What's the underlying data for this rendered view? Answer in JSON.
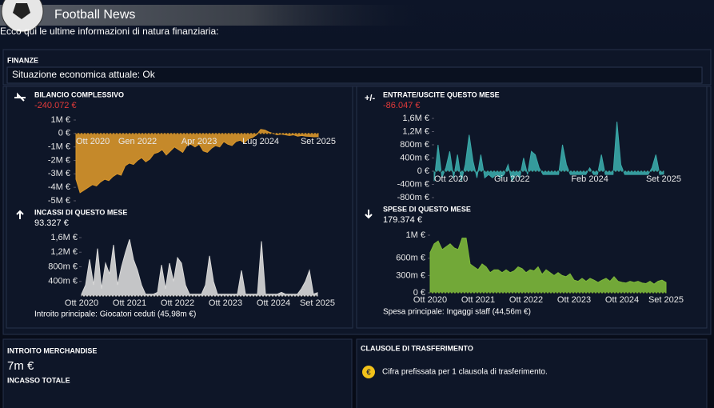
{
  "header": {
    "title": "Football News",
    "subtitle": "Ecco qui le ultime informazioni di natura finanziaria:"
  },
  "finance": {
    "label": "FINANZE",
    "status": "Situazione economica attuale: Ok"
  },
  "chart_data": [
    {
      "type": "area",
      "title": "BILANCIO COMPLESSIVO",
      "value_text": "-240.072 €",
      "color": "#d9962a",
      "categories": [
        "Ott 2020",
        null,
        null,
        null,
        null,
        null,
        null,
        null,
        null,
        null,
        null,
        null,
        null,
        null,
        null,
        "Gen 2022",
        null,
        null,
        null,
        null,
        null,
        null,
        null,
        null,
        null,
        null,
        null,
        null,
        null,
        null,
        "Apr 2023",
        null,
        null,
        null,
        null,
        null,
        null,
        null,
        null,
        null,
        null,
        null,
        null,
        null,
        null,
        "Lug 2024",
        null,
        null,
        null,
        null,
        null,
        null,
        null,
        null,
        null,
        null,
        null,
        null,
        null,
        "Set 2025"
      ],
      "values": [
        -3.4,
        -4.4,
        -4.2,
        -4.0,
        -3.8,
        -3.9,
        -3.6,
        -3.4,
        -3.5,
        -3.2,
        -3.0,
        -3.1,
        -2.4,
        -2.2,
        -2.3,
        -2.0,
        -1.8,
        -2.1,
        -1.9,
        -1.5,
        -1.4,
        -1.2,
        -1.6,
        -1.3,
        -1.0,
        -1.2,
        -1.4,
        -0.9,
        -0.8,
        -1.0,
        -0.8,
        -1.3,
        -1.4,
        -1.1,
        -0.9,
        -1.0,
        -0.6,
        -0.8,
        -0.9,
        -0.6,
        -0.5,
        -0.7,
        -0.4,
        -0.3,
        -0.1,
        0.3,
        0.25,
        0.1,
        0.0,
        -0.1,
        -0.05,
        -0.1,
        -0.15,
        -0.1,
        -0.2,
        -0.15,
        -0.2,
        -0.22,
        -0.25,
        -0.24
      ],
      "ylim": [
        -5,
        1
      ],
      "yticks": [
        {
          "value": 1,
          "label": "1M €"
        },
        {
          "value": 0,
          "label": "0 €"
        },
        {
          "value": -1,
          "label": "-1M €"
        },
        {
          "value": -2,
          "label": "-2M €"
        },
        {
          "value": -3,
          "label": "-3M €"
        },
        {
          "value": -4,
          "label": "-4M €"
        },
        {
          "value": -5,
          "label": "-5M €"
        }
      ]
    },
    {
      "type": "area",
      "title": "ENTRATE/USCITE QUESTO MESE",
      "value_text": "-86.047 €",
      "color": "#3aa8a8",
      "categories": [
        "Ott 2020",
        null,
        null,
        null,
        null,
        null,
        null,
        null,
        null,
        null,
        null,
        null,
        null,
        null,
        null,
        null,
        null,
        null,
        null,
        null,
        "Giu 2022",
        null,
        null,
        null,
        null,
        null,
        null,
        null,
        null,
        null,
        null,
        null,
        null,
        null,
        null,
        null,
        null,
        null,
        null,
        null,
        "Feb 2024",
        null,
        null,
        null,
        null,
        null,
        null,
        null,
        null,
        null,
        null,
        null,
        null,
        null,
        null,
        null,
        null,
        null,
        null,
        "Set 2025"
      ],
      "values": [
        -0.3,
        0.8,
        -0.2,
        0.1,
        0.6,
        -0.2,
        0.5,
        -0.3,
        0.2,
        1.1,
        0.3,
        -0.2,
        0.5,
        -0.2,
        -0.1,
        -0.2,
        -0.1,
        -0.2,
        -0.1,
        0.2,
        -0.3,
        -0.1,
        -0.2,
        0.4,
        -0.1,
        0.6,
        0.5,
        0.1,
        -0.1,
        -0.1,
        -0.1,
        -0.1,
        -0.1,
        0.8,
        0.2,
        -0.1,
        -0.1,
        -0.1,
        -0.1,
        -0.1,
        0.1,
        -0.1,
        -0.1,
        0.5,
        -0.1,
        -0.1,
        -0.1,
        1.5,
        0.2,
        -0.1,
        -0.1,
        -0.1,
        -0.1,
        -0.1,
        -0.1,
        -0.1,
        0.1,
        0.5,
        -0.1,
        -0.09
      ],
      "ylim": [
        -0.8,
        1.6
      ],
      "yticks": [
        {
          "value": 1.6,
          "label": "1,6M €"
        },
        {
          "value": 1.2,
          "label": "1,2M €"
        },
        {
          "value": 0.8,
          "label": "800m €"
        },
        {
          "value": 0.4,
          "label": "400m €"
        },
        {
          "value": 0,
          "label": "0 €"
        },
        {
          "value": -0.4,
          "label": "-400m €"
        },
        {
          "value": -0.8,
          "label": "-800m €"
        }
      ]
    },
    {
      "type": "area",
      "title": "INCASSI DI QUESTO MESE",
      "value_text": "93.327 €",
      "color": "#d8d8d8",
      "footer": "Introito principale: Giocatori ceduti (45,98m €)",
      "categories": [
        "Ott 2020",
        null,
        null,
        null,
        null,
        null,
        null,
        null,
        null,
        null,
        null,
        null,
        "Ott 2021",
        null,
        null,
        null,
        null,
        null,
        null,
        null,
        null,
        null,
        null,
        null,
        "Ott 2022",
        null,
        null,
        null,
        null,
        null,
        null,
        null,
        null,
        null,
        null,
        null,
        "Ott 2023",
        null,
        null,
        null,
        null,
        null,
        null,
        null,
        null,
        null,
        null,
        null,
        "Ott 2024",
        null,
        null,
        null,
        null,
        null,
        null,
        null,
        null,
        null,
        null,
        "Set 2025"
      ],
      "values": [
        0.05,
        0.3,
        1.0,
        0.3,
        1.3,
        0.2,
        0.9,
        0.6,
        1.4,
        0.3,
        0.8,
        1.2,
        1.55,
        1.0,
        0.7,
        0.3,
        0.05,
        0.05,
        0.05,
        0.1,
        0.85,
        0.2,
        0.9,
        0.4,
        1.05,
        0.9,
        0.3,
        0.05,
        0.05,
        0.05,
        0.05,
        0.3,
        1.1,
        0.4,
        0.05,
        0.05,
        0.05,
        0.05,
        0.05,
        0.05,
        0.7,
        0.05,
        0.05,
        0.05,
        0.05,
        1.5,
        0.05,
        0.05,
        0.05,
        0.05,
        0.1,
        0.05,
        0.05,
        0.05,
        0.05,
        0.2,
        0.4,
        0.7,
        0.05,
        0.09
      ],
      "ylim": [
        0,
        1.6
      ],
      "yticks": [
        {
          "value": 1.6,
          "label": "1,6M €"
        },
        {
          "value": 1.2,
          "label": "1,2M €"
        },
        {
          "value": 0.8,
          "label": "800m €"
        },
        {
          "value": 0.4,
          "label": "400m €"
        }
      ]
    },
    {
      "type": "area",
      "title": "SPESE DI QUESTO MESE",
      "value_text": "179.374 €",
      "color": "#7db83a",
      "footer": "Spesa principale: Ingaggi staff (44,56m €)",
      "categories": [
        "Ott 2020",
        null,
        null,
        null,
        null,
        null,
        null,
        null,
        null,
        null,
        null,
        null,
        "Ott 2021",
        null,
        null,
        null,
        null,
        null,
        null,
        null,
        null,
        null,
        null,
        null,
        "Ott 2022",
        null,
        null,
        null,
        null,
        null,
        null,
        null,
        null,
        null,
        null,
        null,
        "Ott 2023",
        null,
        null,
        null,
        null,
        null,
        null,
        null,
        null,
        null,
        null,
        null,
        "Ott 2024",
        null,
        null,
        null,
        null,
        null,
        null,
        null,
        null,
        null,
        null,
        "Set 2025"
      ],
      "values": [
        0.7,
        0.85,
        0.9,
        0.75,
        0.8,
        0.85,
        0.78,
        0.75,
        0.95,
        0.95,
        0.5,
        0.45,
        0.4,
        0.5,
        0.45,
        0.35,
        0.4,
        0.4,
        0.35,
        0.4,
        0.35,
        0.38,
        0.45,
        0.42,
        0.35,
        0.4,
        0.38,
        0.45,
        0.32,
        0.4,
        0.35,
        0.3,
        0.35,
        0.3,
        0.28,
        0.33,
        0.22,
        0.2,
        0.25,
        0.2,
        0.25,
        0.22,
        0.18,
        0.22,
        0.25,
        0.2,
        0.28,
        0.2,
        0.18,
        0.17,
        0.2,
        0.18,
        0.2,
        0.17,
        0.16,
        0.2,
        0.15,
        0.2,
        0.22,
        0.18
      ],
      "ylim": [
        0,
        1
      ],
      "yticks": [
        {
          "value": 1,
          "label": "1M €"
        },
        {
          "value": 0.6,
          "label": "600m €"
        },
        {
          "value": 0.3,
          "label": "300m €"
        },
        {
          "value": 0,
          "label": "0 €"
        }
      ]
    }
  ],
  "merchandise": {
    "title": "INTROITO MERCHANDISE",
    "value": "7m €",
    "caption": "INCASSO TOTALE"
  },
  "clauses": {
    "title": "CLAUSOLE DI TRASFERIMENTO",
    "text": "Cifra prefissata per 1 clausola di trasferimento."
  }
}
